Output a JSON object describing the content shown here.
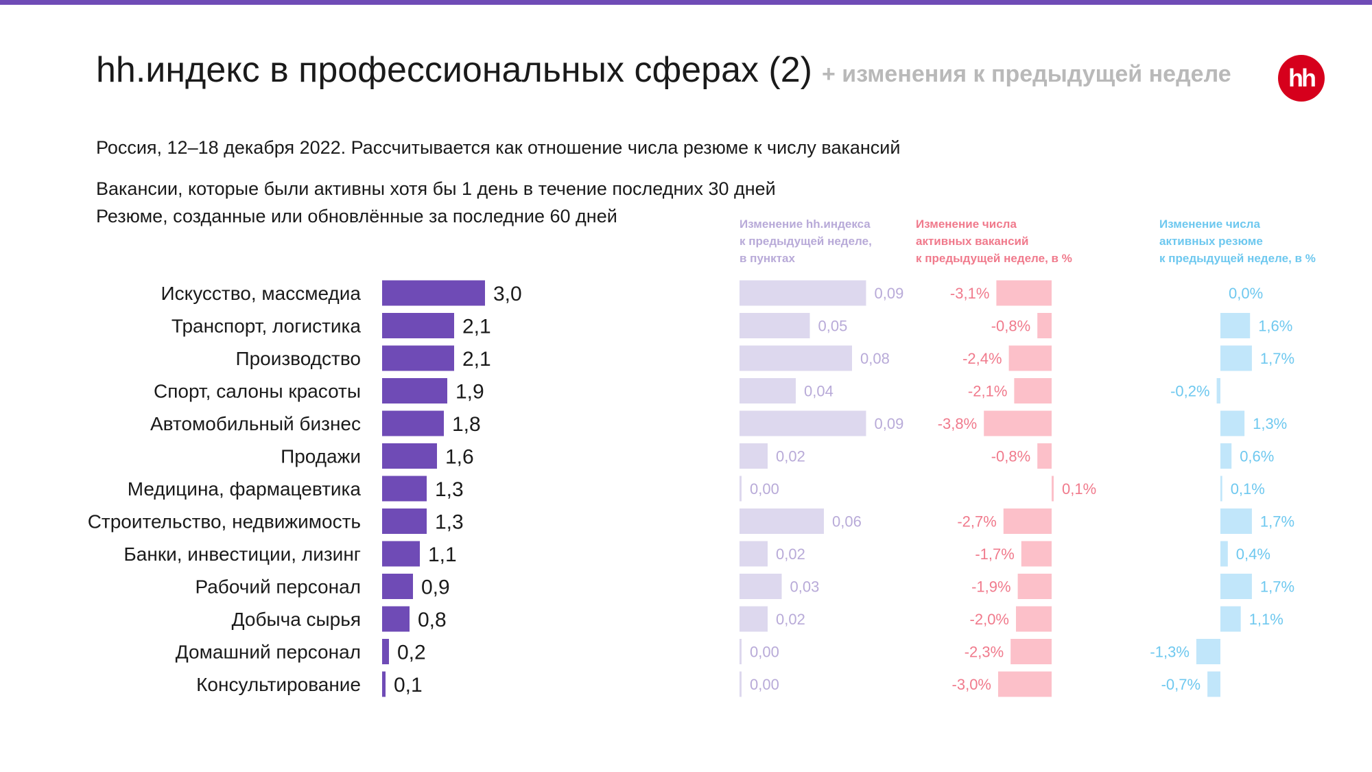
{
  "header": {
    "title": "hh.индекс в профессиональных сферах (2)",
    "subtitle": "+ изменения к предыдущей неделе",
    "logo_text": "hh"
  },
  "description": {
    "line1": "Россия, 12–18 декабря 2022. Рассчитывается как отношение числа резюме к числу вакансий",
    "line2": "Вакансии, которые были активны хотя бы 1 день в течение последних 30 дней",
    "line3": "Резюме, созданные или обновлённые за последние 60 дней"
  },
  "colors": {
    "accent": "#6f4bb6",
    "index_change": "#ddd8ee",
    "index_change_text": "#b8aad8",
    "vacancies": "#fcc0c9",
    "vacancies_text": "#f07a8c",
    "resumes": "#c1e6fa",
    "resumes_text": "#6ec8ef"
  },
  "column_headers": {
    "index_change": "Изменение hh.индекса\nк предыдущей неделе,\nв пунктах",
    "vacancies_change": "Изменение числа\nактивных вакансий\nк предыдущей неделе, в %",
    "resumes_change": "Изменение числа\nактивных резюме\nк предыдущей неделе, в %"
  },
  "chart_data": {
    "type": "bar",
    "orientation": "horizontal",
    "categories": [
      "Искусство, массмедиа",
      "Транспорт, логистика",
      "Производство",
      "Спорт, салоны красоты",
      "Автомобильный бизнес",
      "Продажи",
      "Медицина, фармацевтика",
      "Строительство, недвижимость",
      "Банки, инвестиции, лизинг",
      "Рабочий персонал",
      "Добыча сырья",
      "Домашний персонал",
      "Консультирование"
    ],
    "series": [
      {
        "values": [
          3.0,
          2.1,
          2.1,
          1.9,
          1.8,
          1.6,
          1.3,
          1.3,
          1.1,
          0.9,
          0.8,
          0.2,
          0.1
        ],
        "labels": [
          "3,0",
          "2,1",
          "2,1",
          "1,9",
          "1,8",
          "1,6",
          "1,3",
          "1,3",
          "1,1",
          "0,9",
          "0,8",
          "0,2",
          "0,1"
        ]
      },
      {
        "name": "Изменение hh.индекса к предыдущей неделе, в пунктах",
        "values": [
          0.09,
          0.05,
          0.08,
          0.04,
          0.09,
          0.02,
          0.0,
          0.06,
          0.02,
          0.03,
          0.02,
          0.0,
          0.0
        ],
        "labels": [
          "0,09",
          "0,05",
          "0,08",
          "0,04",
          "0,09",
          "0,02",
          "0,00",
          "0,06",
          "0,02",
          "0,03",
          "0,02",
          "0,00",
          "0,00"
        ]
      },
      {
        "name": "Изменение числа активных вакансий к предыдущей неделе, в %",
        "values": [
          -3.1,
          -0.8,
          -2.4,
          -2.1,
          -3.8,
          -0.8,
          0.1,
          -2.7,
          -1.7,
          -1.9,
          -2.0,
          -2.3,
          -3.0
        ],
        "labels": [
          "-3,1%",
          "-0,8%",
          "-2,4%",
          "-2,1%",
          "-3,8%",
          "-0,8%",
          "0,1%",
          "-2,7%",
          "-1,7%",
          "-1,9%",
          "-2,0%",
          "-2,3%",
          "-3,0%"
        ]
      },
      {
        "name": "Изменение числа активных резюме к предыдущей неделе, в %",
        "values": [
          0.0,
          1.6,
          1.7,
          -0.2,
          1.3,
          0.6,
          0.1,
          1.7,
          0.4,
          1.7,
          1.1,
          -1.3,
          -0.7
        ],
        "labels": [
          "0,0%",
          "1,6%",
          "1,7%",
          "-0,2%",
          "1,3%",
          "0,6%",
          "0,1%",
          "1,7%",
          "0,4%",
          "1,7%",
          "1,1%",
          "-1,3%",
          "-0,7%"
        ]
      }
    ],
    "grid": false,
    "legend": "none"
  }
}
